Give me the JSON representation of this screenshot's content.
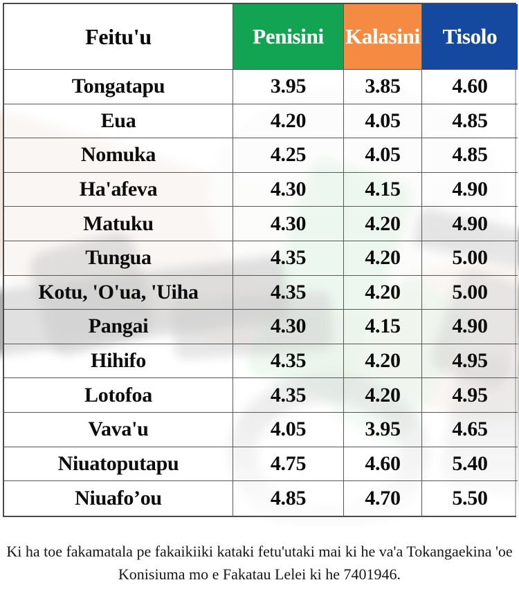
{
  "table": {
    "columns": [
      {
        "label": "Feitu'u",
        "color": "#ffffff",
        "text_color": "#050505"
      },
      {
        "label": "Penisini",
        "color": "#12a452",
        "text_color": "#ffffff"
      },
      {
        "label": "Kalasini",
        "color": "#f58b43",
        "text_color": "#ffffff"
      },
      {
        "label": "Tisolo",
        "color": "#14499f",
        "text_color": "#ffffff"
      }
    ],
    "rows": [
      {
        "place": "Tongatapu",
        "penisini": "3.95",
        "kalasini": "3.85",
        "tisolo": "4.60"
      },
      {
        "place": "Eua",
        "penisini": "4.20",
        "kalasini": "4.05",
        "tisolo": "4.85"
      },
      {
        "place": "Nomuka",
        "penisini": "4.25",
        "kalasini": "4.05",
        "tisolo": "4.85"
      },
      {
        "place": "Ha'afeva",
        "penisini": "4.30",
        "kalasini": "4.15",
        "tisolo": "4.90"
      },
      {
        "place": "Matuku",
        "penisini": "4.30",
        "kalasini": "4.20",
        "tisolo": "4.90"
      },
      {
        "place": "Tungua",
        "penisini": "4.35",
        "kalasini": "4.20",
        "tisolo": "5.00"
      },
      {
        "place": "Kotu, 'O'ua, 'Uiha",
        "penisini": "4.35",
        "kalasini": "4.20",
        "tisolo": "5.00"
      },
      {
        "place": "Pangai",
        "penisini": "4.30",
        "kalasini": "4.15",
        "tisolo": "4.90"
      },
      {
        "place": "Hihifo",
        "penisini": "4.35",
        "kalasini": "4.20",
        "tisolo": "4.95"
      },
      {
        "place": "Lotofoa",
        "penisini": "4.35",
        "kalasini": "4.20",
        "tisolo": "4.95"
      },
      {
        "place": "Vava'u",
        "penisini": "4.05",
        "kalasini": "3.95",
        "tisolo": "4.65"
      },
      {
        "place": "Niuatoputapu",
        "penisini": "4.75",
        "kalasini": "4.60",
        "tisolo": "5.40"
      },
      {
        "place": "Niuafo’ou",
        "penisini": "4.85",
        "kalasini": "4.70",
        "tisolo": "5.50"
      }
    ]
  },
  "footer": {
    "line1": "Ki ha toe fakamatala pe fakaikiiki kataki fetu'utaki mai ki he va'a Tokangaekina 'oe",
    "line2": "Konisiuma mo e Fakatau Lelei ki he 7401946."
  },
  "colors": {
    "penisini_header": "#12a452",
    "kalasini_header": "#f58b43",
    "tisolo_header": "#14499f",
    "grid_border": "#565656"
  }
}
